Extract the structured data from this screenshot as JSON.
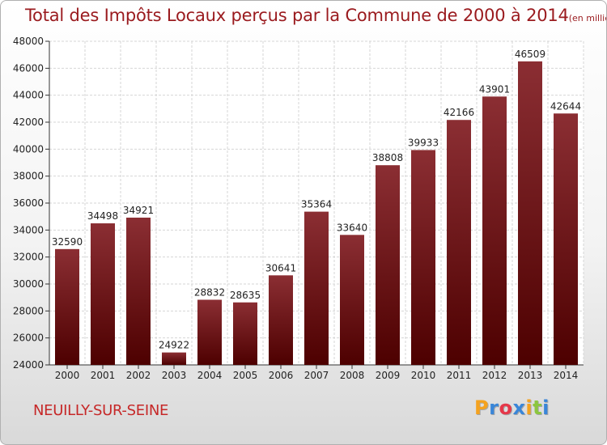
{
  "title": "Total des Impôts Locaux perçus par la Commune de 2000 à 2014",
  "unit_note": "(en milliers d'€)",
  "commune": "NEUILLY-SUR-SEINE",
  "logo": {
    "letters": [
      "P",
      "r",
      "o",
      "x",
      "i",
      "t",
      "i"
    ],
    "colors": [
      "#f4a21f",
      "#3a86d8",
      "#e5384a",
      "#3a86d8",
      "#f4a21f",
      "#8cc63f",
      "#3a86d8"
    ]
  },
  "colors": {
    "bar_top": "#8b2e33",
    "bar_bottom": "#4d0000",
    "title": "#9a1a1e",
    "commune": "#c62828"
  },
  "chart_data": {
    "type": "bar",
    "title": "Total des Impôts Locaux perçus par la Commune de 2000 à 2014",
    "xlabel": "",
    "ylabel": "",
    "ylim": [
      24000,
      48000
    ],
    "grid": true,
    "yticks": [
      24000,
      26000,
      28000,
      30000,
      32000,
      34000,
      36000,
      38000,
      40000,
      42000,
      44000,
      46000,
      48000
    ],
    "categories": [
      "2000",
      "2001",
      "2002",
      "2003",
      "2004",
      "2005",
      "2006",
      "2007",
      "2008",
      "2009",
      "2010",
      "2011",
      "2012",
      "2013",
      "2014"
    ],
    "values": [
      32590,
      34498,
      34921,
      24922,
      28832,
      28635,
      30641,
      35364,
      33640,
      38808,
      39933,
      42166,
      43901,
      46509,
      42644
    ]
  }
}
